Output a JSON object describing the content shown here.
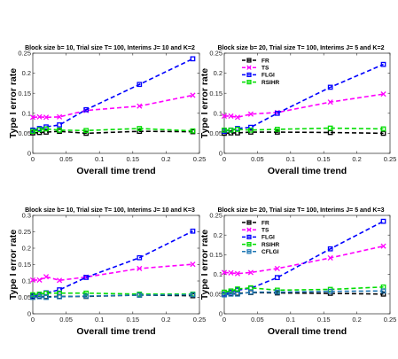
{
  "chart_data": [
    {
      "type": "line",
      "title": "Block size b= 10, Trial size T= 100,  Interims J= 10 and K=2",
      "xlabel": "Overall time trend",
      "ylabel": "Type I error rate",
      "xlim": [
        0,
        0.25
      ],
      "ylim": [
        0,
        0.25
      ],
      "xticks": [
        "0",
        "0.05",
        "0.1",
        "0.15",
        "0.2",
        "0.25"
      ],
      "yticks": [
        "0",
        "0.05",
        "0.1",
        "0.15",
        "0.2",
        "0.25"
      ],
      "legend": null,
      "series": [
        {
          "name": "FR",
          "color": "#000000",
          "marker": "square",
          "x": [
            0,
            0.01,
            0.02,
            0.04,
            0.08,
            0.16,
            0.24
          ],
          "y": [
            0.051,
            0.052,
            0.053,
            0.055,
            0.05,
            0.055,
            0.054
          ]
        },
        {
          "name": "TS",
          "color": "#ff00ff",
          "marker": "x",
          "x": [
            0,
            0.01,
            0.02,
            0.04,
            0.08,
            0.16,
            0.24
          ],
          "y": [
            0.09,
            0.091,
            0.09,
            0.091,
            0.107,
            0.118,
            0.145
          ]
        },
        {
          "name": "FLGI",
          "color": "#0000ff",
          "marker": "square",
          "x": [
            0,
            0.01,
            0.02,
            0.04,
            0.08,
            0.16,
            0.24
          ],
          "y": [
            0.058,
            0.062,
            0.066,
            0.071,
            0.109,
            0.172,
            0.236
          ]
        },
        {
          "name": "RSIHR",
          "color": "#00dd00",
          "marker": "square",
          "x": [
            0,
            0.01,
            0.02,
            0.04,
            0.08,
            0.16,
            0.24
          ],
          "y": [
            0.055,
            0.059,
            0.061,
            0.058,
            0.057,
            0.062,
            0.056
          ]
        }
      ]
    },
    {
      "type": "line",
      "title": "Block size b= 20, Trial size T= 100,  Interims J= 5 and K=2",
      "xlabel": "Overall time trend",
      "ylabel": "Type I error rate",
      "xlim": [
        0,
        0.25
      ],
      "ylim": [
        0,
        0.25
      ],
      "xticks": [
        "0",
        "0.05",
        "0.1",
        "0.15",
        "0.2",
        "0.25"
      ],
      "yticks": [
        "0",
        "0.05",
        "0.1",
        "0.15",
        "0.2",
        "0.25"
      ],
      "legend": "top-left",
      "series": [
        {
          "name": "FR",
          "color": "#000000",
          "marker": "square",
          "x": [
            0,
            0.01,
            0.02,
            0.04,
            0.08,
            0.16,
            0.24
          ],
          "y": [
            0.05,
            0.051,
            0.051,
            0.053,
            0.053,
            0.052,
            0.05
          ]
        },
        {
          "name": "TS",
          "color": "#ff00ff",
          "marker": "x",
          "x": [
            0,
            0.01,
            0.02,
            0.04,
            0.08,
            0.16,
            0.24
          ],
          "y": [
            0.093,
            0.093,
            0.09,
            0.098,
            0.102,
            0.128,
            0.148
          ]
        },
        {
          "name": "FLGI",
          "color": "#0000ff",
          "marker": "square",
          "x": [
            0,
            0.01,
            0.02,
            0.04,
            0.08,
            0.16,
            0.24
          ],
          "y": [
            0.055,
            0.058,
            0.062,
            0.065,
            0.1,
            0.165,
            0.222
          ]
        },
        {
          "name": "RSIHR",
          "color": "#00dd00",
          "marker": "square",
          "x": [
            0,
            0.01,
            0.02,
            0.04,
            0.08,
            0.16,
            0.24
          ],
          "y": [
            0.058,
            0.058,
            0.06,
            0.058,
            0.06,
            0.063,
            0.061
          ]
        }
      ]
    },
    {
      "type": "line",
      "title": "Block size b= 10, Trial size T= 100,  Interims J= 10 and K=3",
      "xlabel": "Overall time trend",
      "ylabel": "Type I error rate",
      "xlim": [
        0,
        0.25
      ],
      "ylim": [
        0,
        0.3
      ],
      "xticks": [
        "0",
        "0.05",
        "0.1",
        "0.15",
        "0.2",
        "0.25"
      ],
      "yticks": [
        "0",
        "0.05",
        "0.1",
        "0.15",
        "0.2",
        "0.25",
        "0.3"
      ],
      "legend": null,
      "series": [
        {
          "name": "FR",
          "color": "#000000",
          "marker": "square",
          "x": [
            0,
            0.01,
            0.02,
            0.04,
            0.08,
            0.16,
            0.24
          ],
          "y": [
            0.052,
            0.053,
            0.052,
            0.053,
            0.053,
            0.057,
            0.055
          ]
        },
        {
          "name": "TS",
          "color": "#ff00ff",
          "marker": "x",
          "x": [
            0,
            0.01,
            0.02,
            0.04,
            0.08,
            0.16,
            0.24
          ],
          "y": [
            0.103,
            0.103,
            0.113,
            0.102,
            0.112,
            0.138,
            0.151
          ]
        },
        {
          "name": "FLGI",
          "color": "#0000ff",
          "marker": "square",
          "x": [
            0,
            0.01,
            0.02,
            0.04,
            0.08,
            0.16,
            0.24
          ],
          "y": [
            0.055,
            0.058,
            0.064,
            0.073,
            0.111,
            0.171,
            0.252
          ]
        },
        {
          "name": "RSIHR",
          "color": "#00dd00",
          "marker": "square",
          "x": [
            0,
            0.01,
            0.02,
            0.04,
            0.08,
            0.16,
            0.24
          ],
          "y": [
            0.058,
            0.06,
            0.063,
            0.063,
            0.063,
            0.06,
            0.06
          ]
        },
        {
          "name": "CFLGI",
          "color": "#1f77b4",
          "marker": "square",
          "x": [
            0,
            0.01,
            0.02,
            0.04,
            0.08,
            0.16,
            0.24
          ],
          "y": [
            0.05,
            0.052,
            0.05,
            0.052,
            0.054,
            0.057,
            0.058
          ]
        }
      ]
    },
    {
      "type": "line",
      "title": "Block size b= 20, Trial size T= 100,  Interims J= 5 and K=3",
      "xlabel": "Overall time trend",
      "ylabel": "Type I error rate",
      "xlim": [
        0,
        0.25
      ],
      "ylim": [
        0,
        0.25
      ],
      "xticks": [
        "0",
        "0.05",
        "0.1",
        "0.15",
        "0.2",
        "0.25"
      ],
      "yticks": [
        "0",
        "0.05",
        "0.1",
        "0.15",
        "0.2",
        "0.25"
      ],
      "legend": "top-left",
      "series": [
        {
          "name": "FR",
          "color": "#000000",
          "marker": "square",
          "x": [
            0,
            0.01,
            0.02,
            0.04,
            0.08,
            0.16,
            0.24
          ],
          "y": [
            0.05,
            0.051,
            0.052,
            0.054,
            0.053,
            0.052,
            0.05
          ]
        },
        {
          "name": "TS",
          "color": "#ff00ff",
          "marker": "x",
          "x": [
            0,
            0.01,
            0.02,
            0.04,
            0.08,
            0.16,
            0.24
          ],
          "y": [
            0.105,
            0.104,
            0.102,
            0.105,
            0.115,
            0.142,
            0.172
          ]
        },
        {
          "name": "FLGI",
          "color": "#0000ff",
          "marker": "square",
          "x": [
            0,
            0.01,
            0.02,
            0.04,
            0.08,
            0.16,
            0.24
          ],
          "y": [
            0.05,
            0.055,
            0.06,
            0.065,
            0.092,
            0.165,
            0.235
          ]
        },
        {
          "name": "RSIHR",
          "color": "#00dd00",
          "marker": "square",
          "x": [
            0,
            0.01,
            0.02,
            0.04,
            0.08,
            0.16,
            0.24
          ],
          "y": [
            0.055,
            0.058,
            0.063,
            0.066,
            0.06,
            0.062,
            0.068
          ]
        },
        {
          "name": "CFLGI",
          "color": "#1f77b4",
          "marker": "square",
          "x": [
            0,
            0.01,
            0.02,
            0.04,
            0.08,
            0.16,
            0.24
          ],
          "y": [
            0.048,
            0.05,
            0.05,
            0.055,
            0.055,
            0.057,
            0.058
          ]
        }
      ]
    }
  ]
}
